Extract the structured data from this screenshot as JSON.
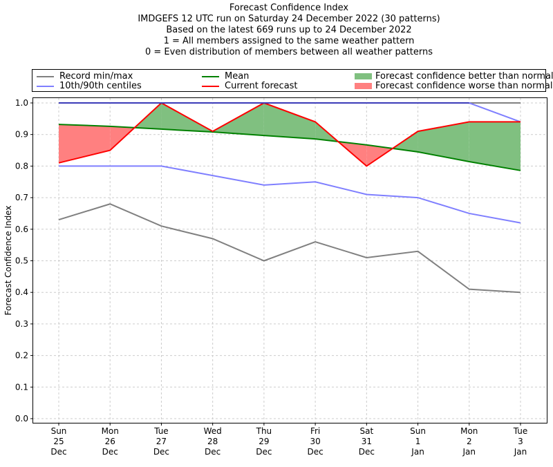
{
  "chart_data": {
    "type": "line",
    "title": "Forecast Confidence Index",
    "subtitle_lines": [
      "IMDGEFS 12 UTC run on Saturday 24 December 2022 (30 patterns)",
      "Based on the latest 669 runs up to 24 December 2022",
      "1 = All members assigned to the same weather pattern",
      "0 = Even distribution of members between all weather patterns"
    ],
    "xlabel": "",
    "ylabel": "Forecast Confidence Index",
    "ylim": [
      0.0,
      1.0
    ],
    "yticks": [
      "0.0",
      "0.1",
      "0.2",
      "0.3",
      "0.4",
      "0.5",
      "0.6",
      "0.7",
      "0.8",
      "0.9",
      "1.0"
    ],
    "ytick_values": [
      0.0,
      0.1,
      0.2,
      0.3,
      0.4,
      0.5,
      0.6,
      0.7,
      0.8,
      0.9,
      1.0
    ],
    "grid": true,
    "legend_position": "top, above plot",
    "categories": [
      {
        "day": "Sun",
        "date": "25",
        "month": "Dec"
      },
      {
        "day": "Mon",
        "date": "26",
        "month": "Dec"
      },
      {
        "day": "Tue",
        "date": "27",
        "month": "Dec"
      },
      {
        "day": "Wed",
        "date": "28",
        "month": "Dec"
      },
      {
        "day": "Thu",
        "date": "29",
        "month": "Dec"
      },
      {
        "day": "Fri",
        "date": "30",
        "month": "Dec"
      },
      {
        "day": "Sat",
        "date": "31",
        "month": "Dec"
      },
      {
        "day": "Sun",
        "date": "1",
        "month": "Jan"
      },
      {
        "day": "Mon",
        "date": "2",
        "month": "Jan"
      },
      {
        "day": "Tue",
        "date": "3",
        "month": "Jan"
      }
    ],
    "series": [
      {
        "name": "Record max",
        "legend": "Record min/max",
        "color": "#808080",
        "values": [
          1.0,
          1.0,
          1.0,
          1.0,
          1.0,
          1.0,
          1.0,
          1.0,
          1.0,
          1.0
        ]
      },
      {
        "name": "Record min",
        "legend": "Record min/max",
        "color": "#808080",
        "values": [
          0.63,
          0.68,
          0.61,
          0.57,
          0.5,
          0.56,
          0.51,
          0.53,
          0.41,
          0.4
        ]
      },
      {
        "name": "90th centile",
        "legend": "10th/90th centiles",
        "color": "#7f7fff",
        "values": [
          1.0,
          1.0,
          1.0,
          1.0,
          1.0,
          1.0,
          1.0,
          1.0,
          1.0,
          0.94
        ]
      },
      {
        "name": "10th centile",
        "legend": "10th/90th centiles",
        "color": "#7f7fff",
        "values": [
          0.8,
          0.8,
          0.8,
          0.77,
          0.74,
          0.75,
          0.71,
          0.7,
          0.65,
          0.62
        ]
      },
      {
        "name": "Mean",
        "legend": "Mean",
        "color": "#008000",
        "values": [
          0.932,
          0.926,
          0.917,
          0.908,
          0.897,
          0.886,
          0.867,
          0.845,
          0.814,
          0.786
        ]
      },
      {
        "name": "Current forecast",
        "legend": "Current forecast",
        "color": "#ff0000",
        "values": [
          0.81,
          0.85,
          1.0,
          0.91,
          1.0,
          0.94,
          0.8,
          0.91,
          0.94,
          0.94
        ]
      }
    ],
    "fills": [
      {
        "name": "Forecast confidence better than normal",
        "color": "#80c080",
        "condition": "current > mean"
      },
      {
        "name": "Forecast confidence worse than normal",
        "color": "#ff8080",
        "condition": "current < mean"
      }
    ],
    "legend": [
      {
        "label": "Record min/max",
        "kind": "line",
        "color": "#808080"
      },
      {
        "label": "10th/90th centiles",
        "kind": "line",
        "color": "#7f7fff"
      },
      {
        "label": "Mean",
        "kind": "line",
        "color": "#008000"
      },
      {
        "label": "Current forecast",
        "kind": "line",
        "color": "#ff0000"
      },
      {
        "label": "Forecast confidence better than normal",
        "kind": "patch",
        "color": "#80c080"
      },
      {
        "label": "Forecast confidence worse than normal",
        "kind": "patch",
        "color": "#ff8080"
      }
    ]
  }
}
